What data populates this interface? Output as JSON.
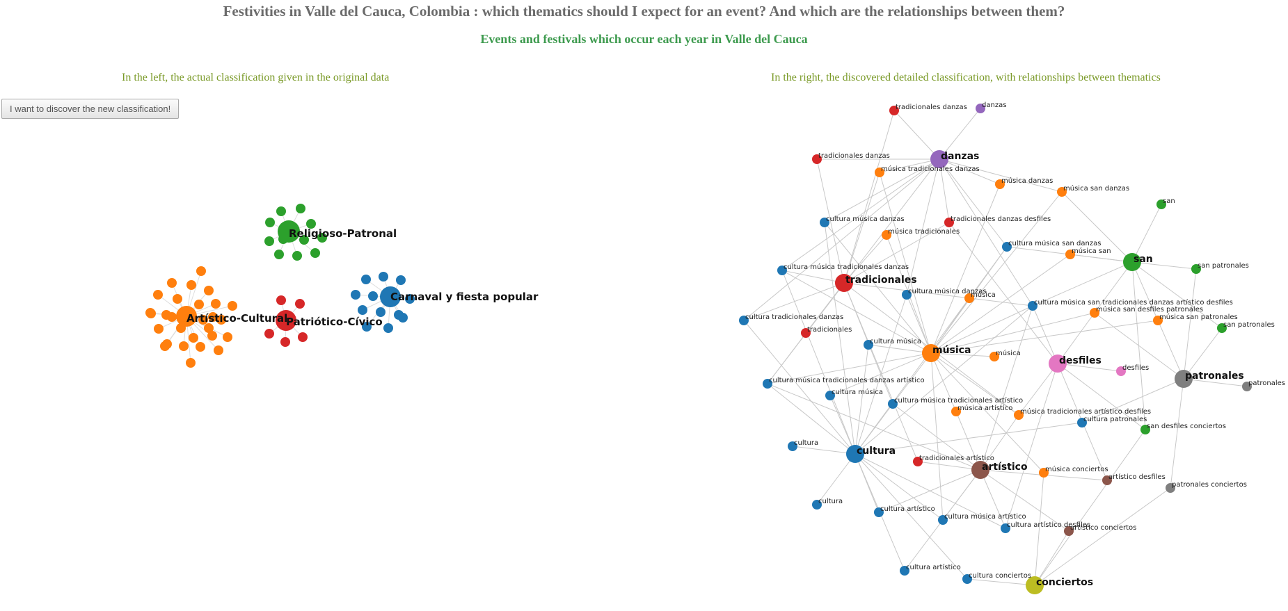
{
  "header": {
    "title": "Festivities in Valle del Cauca, Colombia : which thematics should I expect for an event? And which are the relationships between them?",
    "subtitle": "Events and festivals which occur each year in Valle del Cauca"
  },
  "captions": {
    "left": "In the left, the actual classification given in the original data",
    "right": "In the right, the discovered detailed classification, with relationships between thematics"
  },
  "controls": {
    "discover_label": "I want to discover the new classification!"
  },
  "colors": {
    "blue": "#1f77b4",
    "orange": "#ff7f0e",
    "green": "#2ca02c",
    "red": "#d62728",
    "purple": "#9467bd",
    "brown": "#8c564b",
    "pink": "#e377c2",
    "gray": "#7f7f7f",
    "olive": "#bcbd22",
    "link": "#c8c8c8"
  },
  "left_graph": {
    "groups": [
      {
        "name": "Religioso-Patronal",
        "color": "green",
        "members": 12
      },
      {
        "name": "Artístico-Cultural",
        "color": "orange",
        "members": 28
      },
      {
        "name": "Patriótico-Cívico",
        "color": "red",
        "members": 6
      },
      {
        "name": "Carnaval y fiesta popular",
        "color": "blue",
        "members": 13
      }
    ]
  },
  "right_graph": {
    "nodes": [
      {
        "id": "danzas",
        "label": "danzas",
        "color": "purple",
        "hub": true
      },
      {
        "id": "tradicionales",
        "label": "tradicionales",
        "color": "red",
        "hub": true
      },
      {
        "id": "musica",
        "label": "música",
        "color": "orange",
        "hub": true
      },
      {
        "id": "san",
        "label": "san",
        "color": "green",
        "hub": true
      },
      {
        "id": "desfiles",
        "label": "desfiles",
        "color": "pink",
        "hub": true
      },
      {
        "id": "patronales",
        "label": "patronales",
        "color": "gray",
        "hub": true
      },
      {
        "id": "cultura",
        "label": "cultura",
        "color": "blue",
        "hub": true
      },
      {
        "id": "artistico",
        "label": "artístico",
        "color": "brown",
        "hub": true
      },
      {
        "id": "conciertos",
        "label": "conciertos",
        "color": "olive",
        "hub": true
      },
      {
        "id": "n1",
        "label": "tradicionales danzas",
        "color": "red"
      },
      {
        "id": "n2",
        "label": "danzas",
        "color": "purple"
      },
      {
        "id": "n3",
        "label": "tradicionales danzas",
        "color": "red"
      },
      {
        "id": "n4",
        "label": "música tradicionales danzas",
        "color": "orange"
      },
      {
        "id": "n5",
        "label": "música danzas",
        "color": "orange"
      },
      {
        "id": "n6",
        "label": "música san danzas",
        "color": "orange"
      },
      {
        "id": "n7",
        "label": "san",
        "color": "green"
      },
      {
        "id": "n8",
        "label": "cultura música danzas",
        "color": "blue"
      },
      {
        "id": "n9",
        "label": "tradicionales danzas desfiles",
        "color": "red"
      },
      {
        "id": "n10",
        "label": "música tradicionales",
        "color": "orange"
      },
      {
        "id": "n11",
        "label": "cultura música san danzas",
        "color": "blue"
      },
      {
        "id": "n12",
        "label": "música san",
        "color": "orange"
      },
      {
        "id": "n13",
        "label": "san patronales",
        "color": "green"
      },
      {
        "id": "n14",
        "label": "cultura música tradicionales danzas",
        "color": "blue"
      },
      {
        "id": "n15",
        "label": "cultura música danzas",
        "color": "blue"
      },
      {
        "id": "n16",
        "label": "música",
        "color": "orange"
      },
      {
        "id": "n17",
        "label": "cultura música san tradicionales danzas artístico desfiles",
        "color": "blue"
      },
      {
        "id": "n18",
        "label": "música san desfiles patronales",
        "color": "orange"
      },
      {
        "id": "n19",
        "label": "música san patronales",
        "color": "orange"
      },
      {
        "id": "n20",
        "label": "san patronales",
        "color": "green"
      },
      {
        "id": "n21",
        "label": "cultura tradicionales danzas",
        "color": "blue"
      },
      {
        "id": "n22",
        "label": "tradicionales",
        "color": "red"
      },
      {
        "id": "n23",
        "label": "cultura música",
        "color": "blue"
      },
      {
        "id": "n24",
        "label": "música",
        "color": "orange"
      },
      {
        "id": "n25",
        "label": "desfiles",
        "color": "pink"
      },
      {
        "id": "n26",
        "label": "patronales",
        "color": "gray"
      },
      {
        "id": "n27",
        "label": "cultura música tradicionales danzas artístico",
        "color": "blue"
      },
      {
        "id": "n28",
        "label": "cultura música",
        "color": "blue"
      },
      {
        "id": "n29",
        "label": "cultura música tradicionales artístico",
        "color": "blue"
      },
      {
        "id": "n30",
        "label": "música artístico",
        "color": "orange"
      },
      {
        "id": "n31",
        "label": "música tradicionales artístico desfiles",
        "color": "orange"
      },
      {
        "id": "n32",
        "label": "cultura patronales",
        "color": "blue"
      },
      {
        "id": "n33",
        "label": "san desfiles conciertos",
        "color": "green"
      },
      {
        "id": "n34",
        "label": "cultura",
        "color": "blue"
      },
      {
        "id": "n35",
        "label": "tradicionales artístico",
        "color": "red"
      },
      {
        "id": "n36",
        "label": "música conciertos",
        "color": "orange"
      },
      {
        "id": "n37",
        "label": "artístico desfiles",
        "color": "brown"
      },
      {
        "id": "n38",
        "label": "patronales conciertos",
        "color": "gray"
      },
      {
        "id": "n39",
        "label": "cultura",
        "color": "blue"
      },
      {
        "id": "n40",
        "label": "cultura artístico",
        "color": "blue"
      },
      {
        "id": "n41",
        "label": "cultura música artístico",
        "color": "blue"
      },
      {
        "id": "n42",
        "label": "cultura artístico desfiles",
        "color": "blue"
      },
      {
        "id": "n43",
        "label": "artístico conciertos",
        "color": "brown"
      },
      {
        "id": "n44",
        "label": "cultura artístico",
        "color": "blue"
      },
      {
        "id": "n45",
        "label": "cultura conciertos",
        "color": "blue"
      }
    ],
    "links": [
      [
        "n1",
        "tradicionales"
      ],
      [
        "n1",
        "danzas"
      ],
      [
        "n2",
        "danzas"
      ],
      [
        "n3",
        "tradicionales"
      ],
      [
        "n3",
        "danzas"
      ],
      [
        "n4",
        "musica"
      ],
      [
        "n4",
        "tradicionales"
      ],
      [
        "n4",
        "danzas"
      ],
      [
        "n5",
        "musica"
      ],
      [
        "n5",
        "danzas"
      ],
      [
        "n6",
        "musica"
      ],
      [
        "n6",
        "san"
      ],
      [
        "n6",
        "danzas"
      ],
      [
        "n7",
        "san"
      ],
      [
        "n8",
        "cultura"
      ],
      [
        "n8",
        "musica"
      ],
      [
        "n8",
        "danzas"
      ],
      [
        "n9",
        "tradicionales"
      ],
      [
        "n9",
        "danzas"
      ],
      [
        "n9",
        "desfiles"
      ],
      [
        "n10",
        "musica"
      ],
      [
        "n10",
        "tradicionales"
      ],
      [
        "n11",
        "cultura"
      ],
      [
        "n11",
        "musica"
      ],
      [
        "n11",
        "san"
      ],
      [
        "n11",
        "danzas"
      ],
      [
        "n12",
        "musica"
      ],
      [
        "n12",
        "san"
      ],
      [
        "n13",
        "san"
      ],
      [
        "n13",
        "patronales"
      ],
      [
        "n14",
        "cultura"
      ],
      [
        "n14",
        "musica"
      ],
      [
        "n14",
        "tradicionales"
      ],
      [
        "n14",
        "danzas"
      ],
      [
        "n15",
        "cultura"
      ],
      [
        "n15",
        "musica"
      ],
      [
        "n15",
        "danzas"
      ],
      [
        "n16",
        "musica"
      ],
      [
        "n17",
        "cultura"
      ],
      [
        "n17",
        "musica"
      ],
      [
        "n17",
        "san"
      ],
      [
        "n17",
        "tradicionales"
      ],
      [
        "n17",
        "danzas"
      ],
      [
        "n17",
        "artistico"
      ],
      [
        "n17",
        "desfiles"
      ],
      [
        "n18",
        "musica"
      ],
      [
        "n18",
        "san"
      ],
      [
        "n18",
        "desfiles"
      ],
      [
        "n18",
        "patronales"
      ],
      [
        "n19",
        "musica"
      ],
      [
        "n19",
        "san"
      ],
      [
        "n19",
        "patronales"
      ],
      [
        "n20",
        "san"
      ],
      [
        "n20",
        "patronales"
      ],
      [
        "n21",
        "cultura"
      ],
      [
        "n21",
        "tradicionales"
      ],
      [
        "n21",
        "danzas"
      ],
      [
        "n22",
        "tradicionales"
      ],
      [
        "n23",
        "cultura"
      ],
      [
        "n23",
        "musica"
      ],
      [
        "n24",
        "musica"
      ],
      [
        "n25",
        "desfiles"
      ],
      [
        "n26",
        "patronales"
      ],
      [
        "n27",
        "cultura"
      ],
      [
        "n27",
        "musica"
      ],
      [
        "n27",
        "tradicionales"
      ],
      [
        "n27",
        "danzas"
      ],
      [
        "n27",
        "artistico"
      ],
      [
        "n28",
        "cultura"
      ],
      [
        "n28",
        "musica"
      ],
      [
        "n29",
        "cultura"
      ],
      [
        "n29",
        "musica"
      ],
      [
        "n29",
        "tradicionales"
      ],
      [
        "n29",
        "artistico"
      ],
      [
        "n30",
        "musica"
      ],
      [
        "n30",
        "artistico"
      ],
      [
        "n31",
        "musica"
      ],
      [
        "n31",
        "tradicionales"
      ],
      [
        "n31",
        "artistico"
      ],
      [
        "n31",
        "desfiles"
      ],
      [
        "n32",
        "cultura"
      ],
      [
        "n32",
        "patronales"
      ],
      [
        "n33",
        "san"
      ],
      [
        "n33",
        "desfiles"
      ],
      [
        "n33",
        "conciertos"
      ],
      [
        "n34",
        "cultura"
      ],
      [
        "n35",
        "tradicionales"
      ],
      [
        "n35",
        "artistico"
      ],
      [
        "n36",
        "musica"
      ],
      [
        "n36",
        "conciertos"
      ],
      [
        "n37",
        "artistico"
      ],
      [
        "n37",
        "desfiles"
      ],
      [
        "n38",
        "patronales"
      ],
      [
        "n38",
        "conciertos"
      ],
      [
        "n39",
        "cultura"
      ],
      [
        "n40",
        "cultura"
      ],
      [
        "n40",
        "artistico"
      ],
      [
        "n41",
        "cultura"
      ],
      [
        "n41",
        "musica"
      ],
      [
        "n41",
        "artistico"
      ],
      [
        "n42",
        "cultura"
      ],
      [
        "n42",
        "artistico"
      ],
      [
        "n42",
        "desfiles"
      ],
      [
        "n43",
        "artistico"
      ],
      [
        "n43",
        "conciertos"
      ],
      [
        "n44",
        "cultura"
      ],
      [
        "n44",
        "artistico"
      ],
      [
        "n45",
        "cultura"
      ],
      [
        "n45",
        "conciertos"
      ]
    ]
  }
}
